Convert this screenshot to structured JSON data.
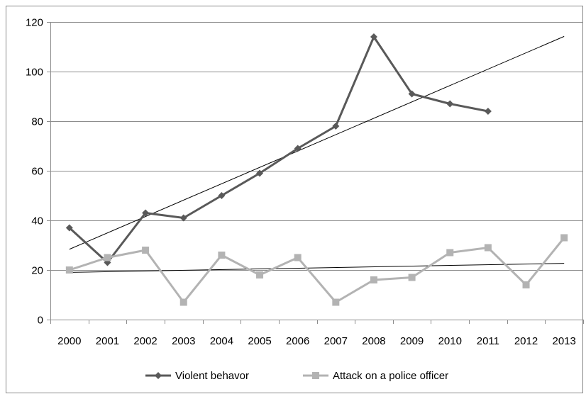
{
  "chart_data": {
    "type": "line",
    "title": "",
    "xlabel": "",
    "ylabel": "",
    "categories": [
      "2000",
      "2001",
      "2002",
      "2003",
      "2004",
      "2005",
      "2006",
      "2007",
      "2008",
      "2009",
      "2010",
      "2011",
      "2012",
      "2013"
    ],
    "ylim": [
      0,
      120
    ],
    "yticks": [
      0,
      20,
      40,
      60,
      80,
      100,
      120
    ],
    "grid": true,
    "legend_position": "bottom",
    "series": [
      {
        "name": "Violent behavor",
        "color": "#595959",
        "marker": "diamond",
        "values": [
          37,
          23,
          43,
          41,
          50,
          59,
          69,
          78,
          114,
          91,
          87,
          84,
          null,
          null
        ],
        "trendline": {
          "type": "linear",
          "color": "#000000"
        }
      },
      {
        "name": "Attack on a police officer",
        "color": "#b3b3b3",
        "marker": "square",
        "values": [
          20,
          25,
          28,
          7,
          26,
          18,
          25,
          7,
          16,
          17,
          27,
          29,
          14,
          33
        ],
        "trendline": {
          "type": "linear",
          "color": "#000000"
        }
      }
    ]
  }
}
